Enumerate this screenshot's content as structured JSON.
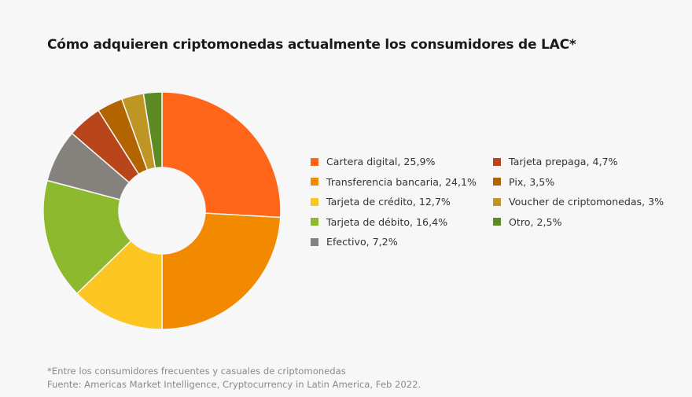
{
  "chart_data": {
    "type": "pie",
    "subtype": "donut",
    "title": "Cómo adquieren criptomonedas actualmente los consumidores de LAC*",
    "slices": [
      {
        "label": "Cartera digital",
        "value": 25.9,
        "legend": "Cartera digital, 25,9%",
        "color": "#ff661a"
      },
      {
        "label": "Transferencia bancaria",
        "value": 24.1,
        "legend": "Transferencia bancaria, 24,1%",
        "color": "#f28a00"
      },
      {
        "label": "Tarjeta de crédito",
        "value": 12.7,
        "legend": "Tarjeta de crédito, 12,7%",
        "color": "#fdc521"
      },
      {
        "label": "Tarjeta de débito",
        "value": 16.4,
        "legend": "Tarjeta de débito, 16,4%",
        "color": "#8db92e"
      },
      {
        "label": "Efectivo",
        "value": 7.2,
        "legend": "Efectivo, 7,2%",
        "color": "#85827d"
      },
      {
        "label": "Tarjeta prepaga",
        "value": 4.7,
        "legend": "Tarjeta prepaga, 4,7%",
        "color": "#b8461a"
      },
      {
        "label": "Pix",
        "value": 3.5,
        "legend": "Pix, 3,5%",
        "color": "#b16400"
      },
      {
        "label": "Voucher de criptomonedas",
        "value": 3,
        "legend": "Voucher de criptomonedas, 3%",
        "color": "#bf9624"
      },
      {
        "label": "Otro",
        "value": 2.5,
        "legend": "Otro, 2,5%",
        "color": "#5e8a25"
      }
    ],
    "legend_position": "right"
  },
  "footnote": {
    "line1": "*Entre los consumidores frecuentes y casuales de criptomonedas",
    "line2": "Fuente: Americas Market Intelligence, Cryptocurrency in Latin America, Feb 2022."
  }
}
